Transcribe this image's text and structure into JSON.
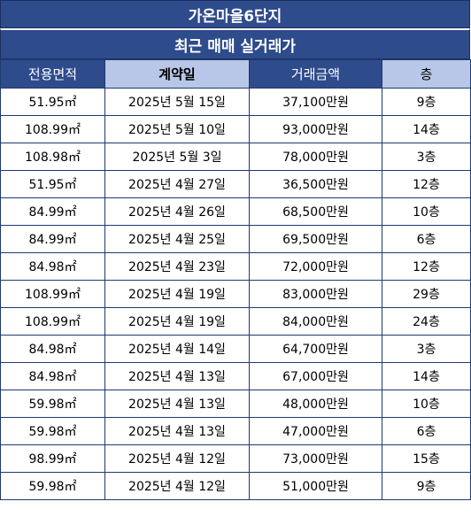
{
  "header": {
    "title": "가온마을6단지",
    "subtitle": "최근 매매 실거래가"
  },
  "colors": {
    "header_dark": "#2e4b8c",
    "header_light": "#b8c7e8",
    "border": "#1f3a6e"
  },
  "table": {
    "columns": [
      "전용면적",
      "계약일",
      "거래금액",
      "층"
    ],
    "rows": [
      [
        "51.95㎡",
        "2025년 5월 15일",
        "37,100만원",
        "9층"
      ],
      [
        "108.99㎡",
        "2025년 5월 10일",
        "93,000만원",
        "14층"
      ],
      [
        "108.98㎡",
        "2025년 5월 3일",
        "78,000만원",
        "3층"
      ],
      [
        "51.95㎡",
        "2025년 4월 27일",
        "36,500만원",
        "12층"
      ],
      [
        "84.99㎡",
        "2025년 4월 26일",
        "68,500만원",
        "10층"
      ],
      [
        "84.99㎡",
        "2025년 4월 25일",
        "69,500만원",
        "6층"
      ],
      [
        "84.98㎡",
        "2025년 4월 23일",
        "72,000만원",
        "12층"
      ],
      [
        "108.99㎡",
        "2025년 4월 19일",
        "83,000만원",
        "29층"
      ],
      [
        "108.99㎡",
        "2025년 4월 19일",
        "84,000만원",
        "24층"
      ],
      [
        "84.98㎡",
        "2025년 4월 14일",
        "64,700만원",
        "3층"
      ],
      [
        "84.98㎡",
        "2025년 4월 13일",
        "67,000만원",
        "14층"
      ],
      [
        "59.98㎡",
        "2025년 4월 13일",
        "48,000만원",
        "10층"
      ],
      [
        "59.98㎡",
        "2025년 4월 13일",
        "47,000만원",
        "6층"
      ],
      [
        "98.99㎡",
        "2025년 4월 12일",
        "73,000만원",
        "15층"
      ],
      [
        "59.98㎡",
        "2025년 4월 12일",
        "51,000만원",
        "9층"
      ]
    ]
  }
}
